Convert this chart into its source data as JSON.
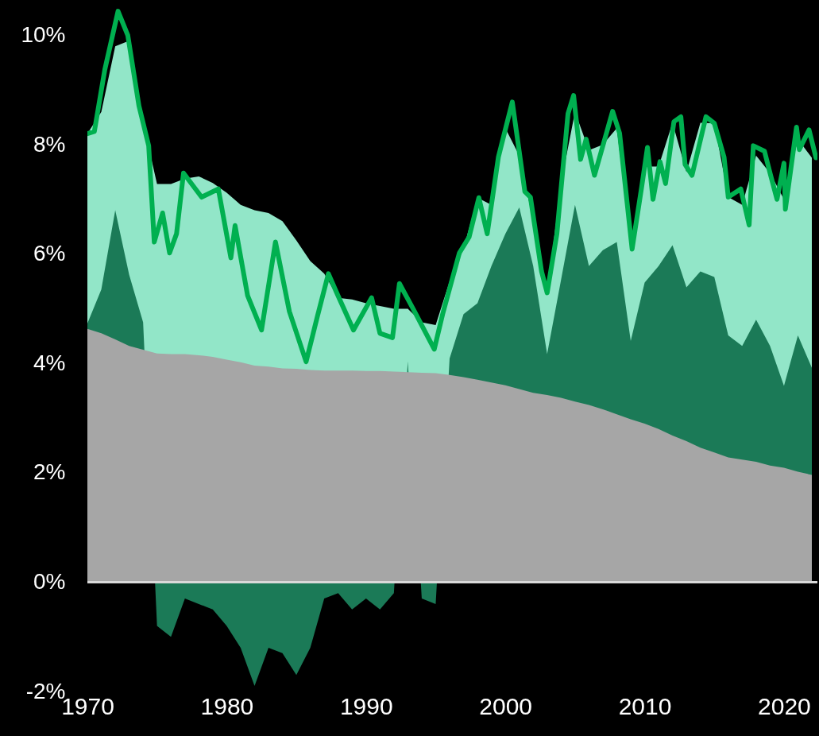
{
  "chart_data": {
    "type": "area",
    "x": [
      1970,
      1971,
      1972,
      1973,
      1974,
      1975,
      1976,
      1977,
      1978,
      1979,
      1980,
      1981,
      1982,
      1983,
      1984,
      1985,
      1986,
      1987,
      1988,
      1989,
      1990,
      1991,
      1992,
      1993,
      1994,
      1995,
      1996,
      1997,
      1998,
      1999,
      2000,
      2001,
      2002,
      2003,
      2004,
      2005,
      2006,
      2007,
      2008,
      2009,
      2010,
      2011,
      2012,
      2013,
      2014,
      2015,
      2016,
      2017,
      2018,
      2019,
      2020,
      2021,
      2022
    ],
    "series": [
      {
        "color": "#92e6c8",
        "values": [
          8.2,
          8.6,
          9.8,
          9.9,
          8.4,
          7.28,
          7.28,
          7.38,
          7.42,
          7.3,
          7.12,
          6.9,
          6.8,
          6.75,
          6.6,
          6.25,
          5.87,
          5.64,
          5.2,
          5.17,
          5.1,
          5.05,
          5.0,
          5.0,
          4.75,
          4.7,
          5.5,
          6.1,
          7.03,
          6.9,
          8.3,
          7.8,
          6.6,
          5.29,
          7.3,
          8.6,
          7.9,
          8.0,
          8.3,
          6.2,
          7.6,
          7.6,
          8.4,
          7.5,
          8.4,
          8.39,
          7.04,
          6.9,
          7.8,
          7.48,
          7.0,
          8.1,
          7.76
        ]
      },
      {
        "color": "#1b7a57",
        "values": [
          4.73,
          5.35,
          6.8,
          5.62,
          4.75,
          -0.8,
          -1.0,
          -0.3,
          -0.4,
          -0.5,
          -0.8,
          -1.2,
          -1.9,
          -1.2,
          -1.3,
          -1.7,
          -1.2,
          -0.3,
          -0.2,
          -0.5,
          -0.3,
          -0.5,
          -0.2,
          4.04,
          -0.3,
          -0.4,
          4.09,
          4.9,
          5.1,
          5.78,
          6.37,
          6.85,
          5.78,
          4.17,
          5.53,
          6.9,
          5.78,
          6.07,
          6.22,
          4.41,
          5.48,
          5.78,
          6.16,
          5.39,
          5.68,
          5.58,
          4.51,
          4.32,
          4.8,
          4.32,
          3.59,
          4.51,
          3.92
        ]
      },
      {
        "color": "#a6a6a6",
        "values": [
          4.63,
          4.55,
          4.44,
          4.32,
          4.25,
          4.18,
          4.17,
          4.17,
          4.15,
          4.12,
          4.07,
          4.02,
          3.96,
          3.94,
          3.91,
          3.9,
          3.88,
          3.87,
          3.87,
          3.87,
          3.86,
          3.86,
          3.85,
          3.84,
          3.83,
          3.82,
          3.79,
          3.75,
          3.7,
          3.65,
          3.6,
          3.53,
          3.46,
          3.42,
          3.37,
          3.3,
          3.24,
          3.16,
          3.07,
          2.98,
          2.9,
          2.8,
          2.68,
          2.58,
          2.46,
          2.37,
          2.28,
          2.24,
          2.2,
          2.13,
          2.09,
          2.02,
          1.96
        ]
      },
      {
        "type": "line",
        "color": "#00b050",
        "x": [
          1970,
          1970.5,
          1971.25,
          1972.2,
          1972.9,
          1973.7,
          1974.4,
          1974.8,
          1975.4,
          1975.9,
          1976.4,
          1976.9,
          1978.2,
          1979.4,
          1980.3,
          1980.6,
          1981.5,
          1982.5,
          1983.5,
          1984.5,
          1985.7,
          1986.5,
          1987.3,
          1987.9,
          1989.1,
          1990.4,
          1991.0,
          1991.9,
          1992.4,
          1993.4,
          1994.9,
          1995.5,
          1996.7,
          1997.4,
          1998.1,
          1998.7,
          1999.5,
          2000.5,
          2001.4,
          2001.8,
          2002.6,
          2003.0,
          2003.7,
          2004.5,
          2004.9,
          2005.4,
          2005.8,
          2006.4,
          2007.7,
          2008.2,
          2009.1,
          2009.8,
          2010.2,
          2010.6,
          2011.1,
          2011.5,
          2012.1,
          2012.6,
          2012.9,
          2013.4,
          2014.4,
          2015.0,
          2015.7,
          2016.0,
          2016.9,
          2017.5,
          2017.8,
          2018.6,
          2019.0,
          2019.5,
          2020.0,
          2020.1,
          2020.9,
          2021.1,
          2021.8,
          2022.3
        ],
        "values": [
          8.2,
          8.24,
          9.37,
          10.44,
          10.0,
          8.71,
          7.98,
          6.22,
          6.75,
          6.02,
          6.37,
          7.48,
          7.04,
          7.19,
          5.93,
          6.52,
          5.24,
          4.61,
          6.22,
          4.95,
          4.03,
          4.85,
          5.64,
          5.29,
          4.61,
          5.2,
          4.55,
          4.47,
          5.46,
          4.99,
          4.26,
          4.9,
          6.02,
          6.31,
          7.03,
          6.37,
          7.77,
          8.78,
          7.14,
          7.04,
          5.68,
          5.29,
          6.37,
          8.57,
          8.9,
          7.73,
          8.1,
          7.44,
          8.61,
          8.21,
          6.09,
          7.25,
          7.95,
          7.0,
          7.69,
          7.29,
          8.42,
          8.51,
          7.64,
          7.44,
          8.51,
          8.39,
          7.77,
          7.04,
          7.19,
          6.53,
          7.98,
          7.88,
          7.48,
          7.0,
          7.66,
          6.82,
          8.32,
          7.91,
          8.27,
          7.76
        ]
      }
    ],
    "xlim": [
      1970,
      2022.4
    ],
    "xticks": [
      1970,
      1980,
      1990,
      2000,
      2010,
      2020
    ],
    "ylim": [
      -2,
      10.5
    ],
    "yticks": [
      {
        "value": -2,
        "label": "-2%"
      },
      {
        "value": 0,
        "label": "0%"
      },
      {
        "value": 2,
        "label": "2%"
      },
      {
        "value": 4,
        "label": "4%"
      },
      {
        "value": 6,
        "label": "6%"
      },
      {
        "value": 8,
        "label": "8%"
      },
      {
        "value": 10,
        "label": "10%"
      }
    ],
    "ref_lines": [
      {
        "axis": "y",
        "value": 0,
        "color": "#d9d9d9"
      }
    ],
    "grid": false
  }
}
